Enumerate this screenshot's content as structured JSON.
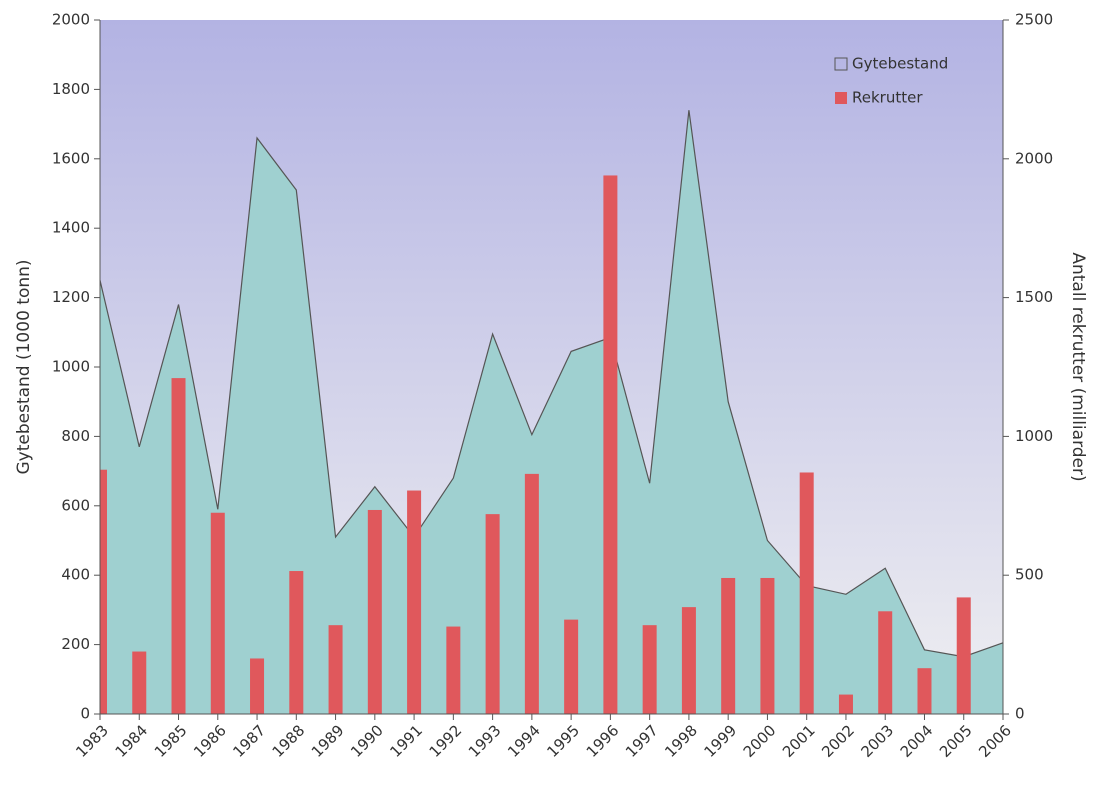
{
  "chart_data": {
    "type": "combo",
    "categories": [
      "1983",
      "1984",
      "1985",
      "1986",
      "1987",
      "1988",
      "1989",
      "1990",
      "1991",
      "1992",
      "1993",
      "1994",
      "1995",
      "1996",
      "1997",
      "1998",
      "1999",
      "2000",
      "2001",
      "2002",
      "2003",
      "2004",
      "2005",
      "2006"
    ],
    "series": [
      {
        "name": "Gytebestand",
        "type": "area",
        "color": "#9fd0d0",
        "axis": "y",
        "values": [
          1250,
          770,
          1180,
          590,
          1660,
          1510,
          510,
          655,
          510,
          680,
          1095,
          805,
          1045,
          1085,
          665,
          1740,
          900,
          500,
          370,
          345,
          420,
          185,
          165,
          205
        ]
      },
      {
        "name": "Rekrutter",
        "type": "bar",
        "color": "#e0585c",
        "axis": "y2",
        "values": [
          880,
          225,
          1210,
          725,
          200,
          515,
          320,
          735,
          805,
          315,
          720,
          865,
          340,
          1940,
          320,
          385,
          490,
          490,
          870,
          70,
          370,
          165,
          420,
          null
        ]
      }
    ],
    "ylabel": "Gytebestand (1000 tonn)",
    "y2label": "Antall rekrutter (milliarder)",
    "ylim": [
      0,
      2000
    ],
    "yticks": [
      0,
      200,
      400,
      600,
      800,
      1000,
      1200,
      1400,
      1600,
      1800,
      2000
    ],
    "y2lim": [
      0,
      2500
    ],
    "y2ticks": [
      0,
      500,
      1000,
      1500,
      2000,
      2500
    ],
    "legend": "upper right"
  }
}
